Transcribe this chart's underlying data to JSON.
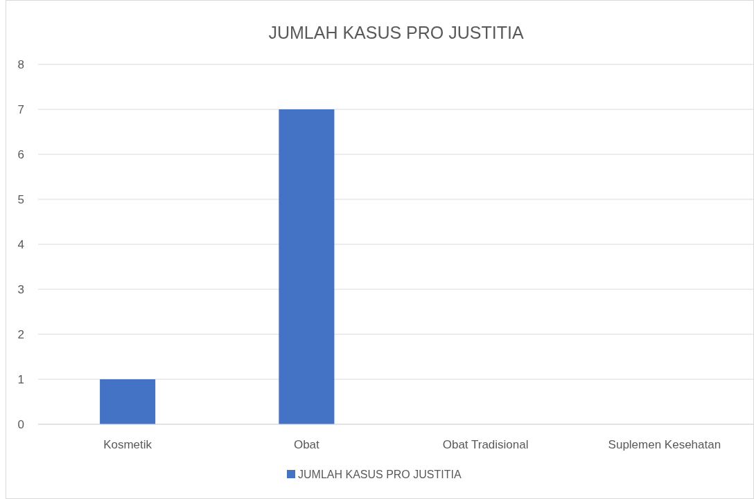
{
  "chart_data": {
    "type": "bar",
    "title": "JUMLAH KASUS PRO JUSTITIA",
    "categories": [
      "Kosmetik",
      "Obat",
      "Obat Tradisional",
      "Suplemen Kesehatan"
    ],
    "series": [
      {
        "name": "JUMLAH KASUS PRO JUSTITIA",
        "color": "#4472c4",
        "values": [
          1,
          7,
          0,
          0
        ]
      }
    ],
    "ylim": [
      0,
      8
    ],
    "yticks": [
      0,
      1,
      2,
      3,
      4,
      5,
      6,
      7,
      8
    ],
    "grid": "y",
    "legend": "bottom"
  }
}
